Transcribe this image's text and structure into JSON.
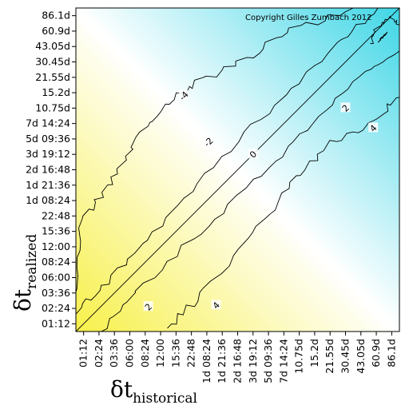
{
  "chart_data": {
    "type": "heatmap",
    "subtype": "contour",
    "copyright": "Copyright Gilles Zumbach 2012",
    "xlabel": {
      "symbol": "δt",
      "subscript": "historical"
    },
    "ylabel": {
      "symbol": "δt",
      "subscript": "realized"
    },
    "x_ticks": [
      "01:12",
      "02:24",
      "03:36",
      "06:00",
      "08:24",
      "12:00",
      "15:36",
      "22:48",
      "1d 08:24",
      "1d 21:36",
      "2d 16:48",
      "3d 19:12",
      "5d 09:36",
      "7d 14:24",
      "10.75d",
      "15.2d",
      "21.55d",
      "30.45d",
      "43.05d",
      "60.9d",
      "86.1d"
    ],
    "y_ticks": [
      "01:12",
      "02:24",
      "03:36",
      "06:00",
      "08:24",
      "12:00",
      "15:36",
      "22:48",
      "1d 08:24",
      "1d 21:36",
      "2d 16:48",
      "3d 19:12",
      "5d 09:36",
      "7d 14:24",
      "10.75d",
      "15.2d",
      "21.55d",
      "30.45d",
      "43.05d",
      "60.9d",
      "86.1d"
    ],
    "color_scale": {
      "negative": "#3fd6e6",
      "zero": "#ffffff",
      "positive": "#f7f04a"
    },
    "contour_levels": [
      -4,
      -2,
      0,
      2,
      4
    ],
    "contour_labels": [
      "-4",
      "-2",
      "0",
      "2",
      "4",
      "4",
      "2"
    ],
    "grid": false,
    "legend": "none"
  }
}
